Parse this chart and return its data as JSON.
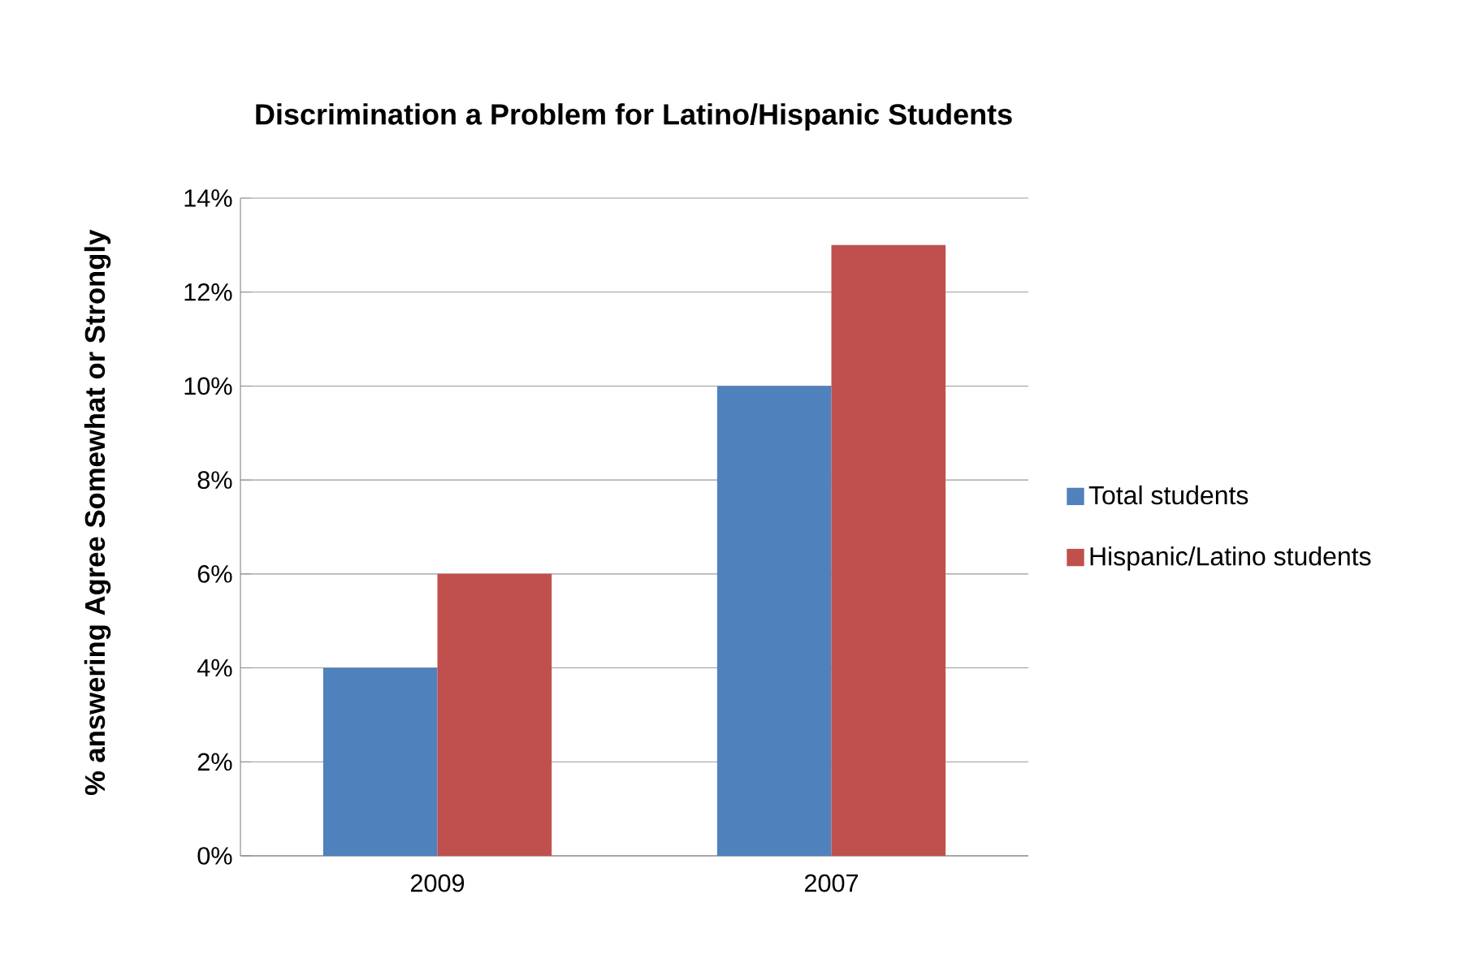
{
  "chart_data": {
    "type": "bar",
    "title": "Discrimination a Problem for Latino/Hispanic Students",
    "ylabel": "% answering Agree Somewhat or Strongly",
    "categories": [
      "2009",
      "2007"
    ],
    "series": [
      {
        "name": "Total students",
        "color": "#4f81bd",
        "values": [
          4,
          10
        ]
      },
      {
        "name": "Hispanic/Latino students",
        "color": "#c0504d",
        "values": [
          6,
          13
        ]
      }
    ],
    "ylim": [
      0,
      14
    ],
    "yticks": [
      {
        "value": 0,
        "label": "0%"
      },
      {
        "value": 2,
        "label": "2%"
      },
      {
        "value": 4,
        "label": "4%"
      },
      {
        "value": 6,
        "label": "6%"
      },
      {
        "value": 8,
        "label": "8%"
      },
      {
        "value": 10,
        "label": "10%"
      },
      {
        "value": 12,
        "label": "12%"
      },
      {
        "value": 14,
        "label": "14%"
      }
    ],
    "grid": "y",
    "legend": "right"
  }
}
